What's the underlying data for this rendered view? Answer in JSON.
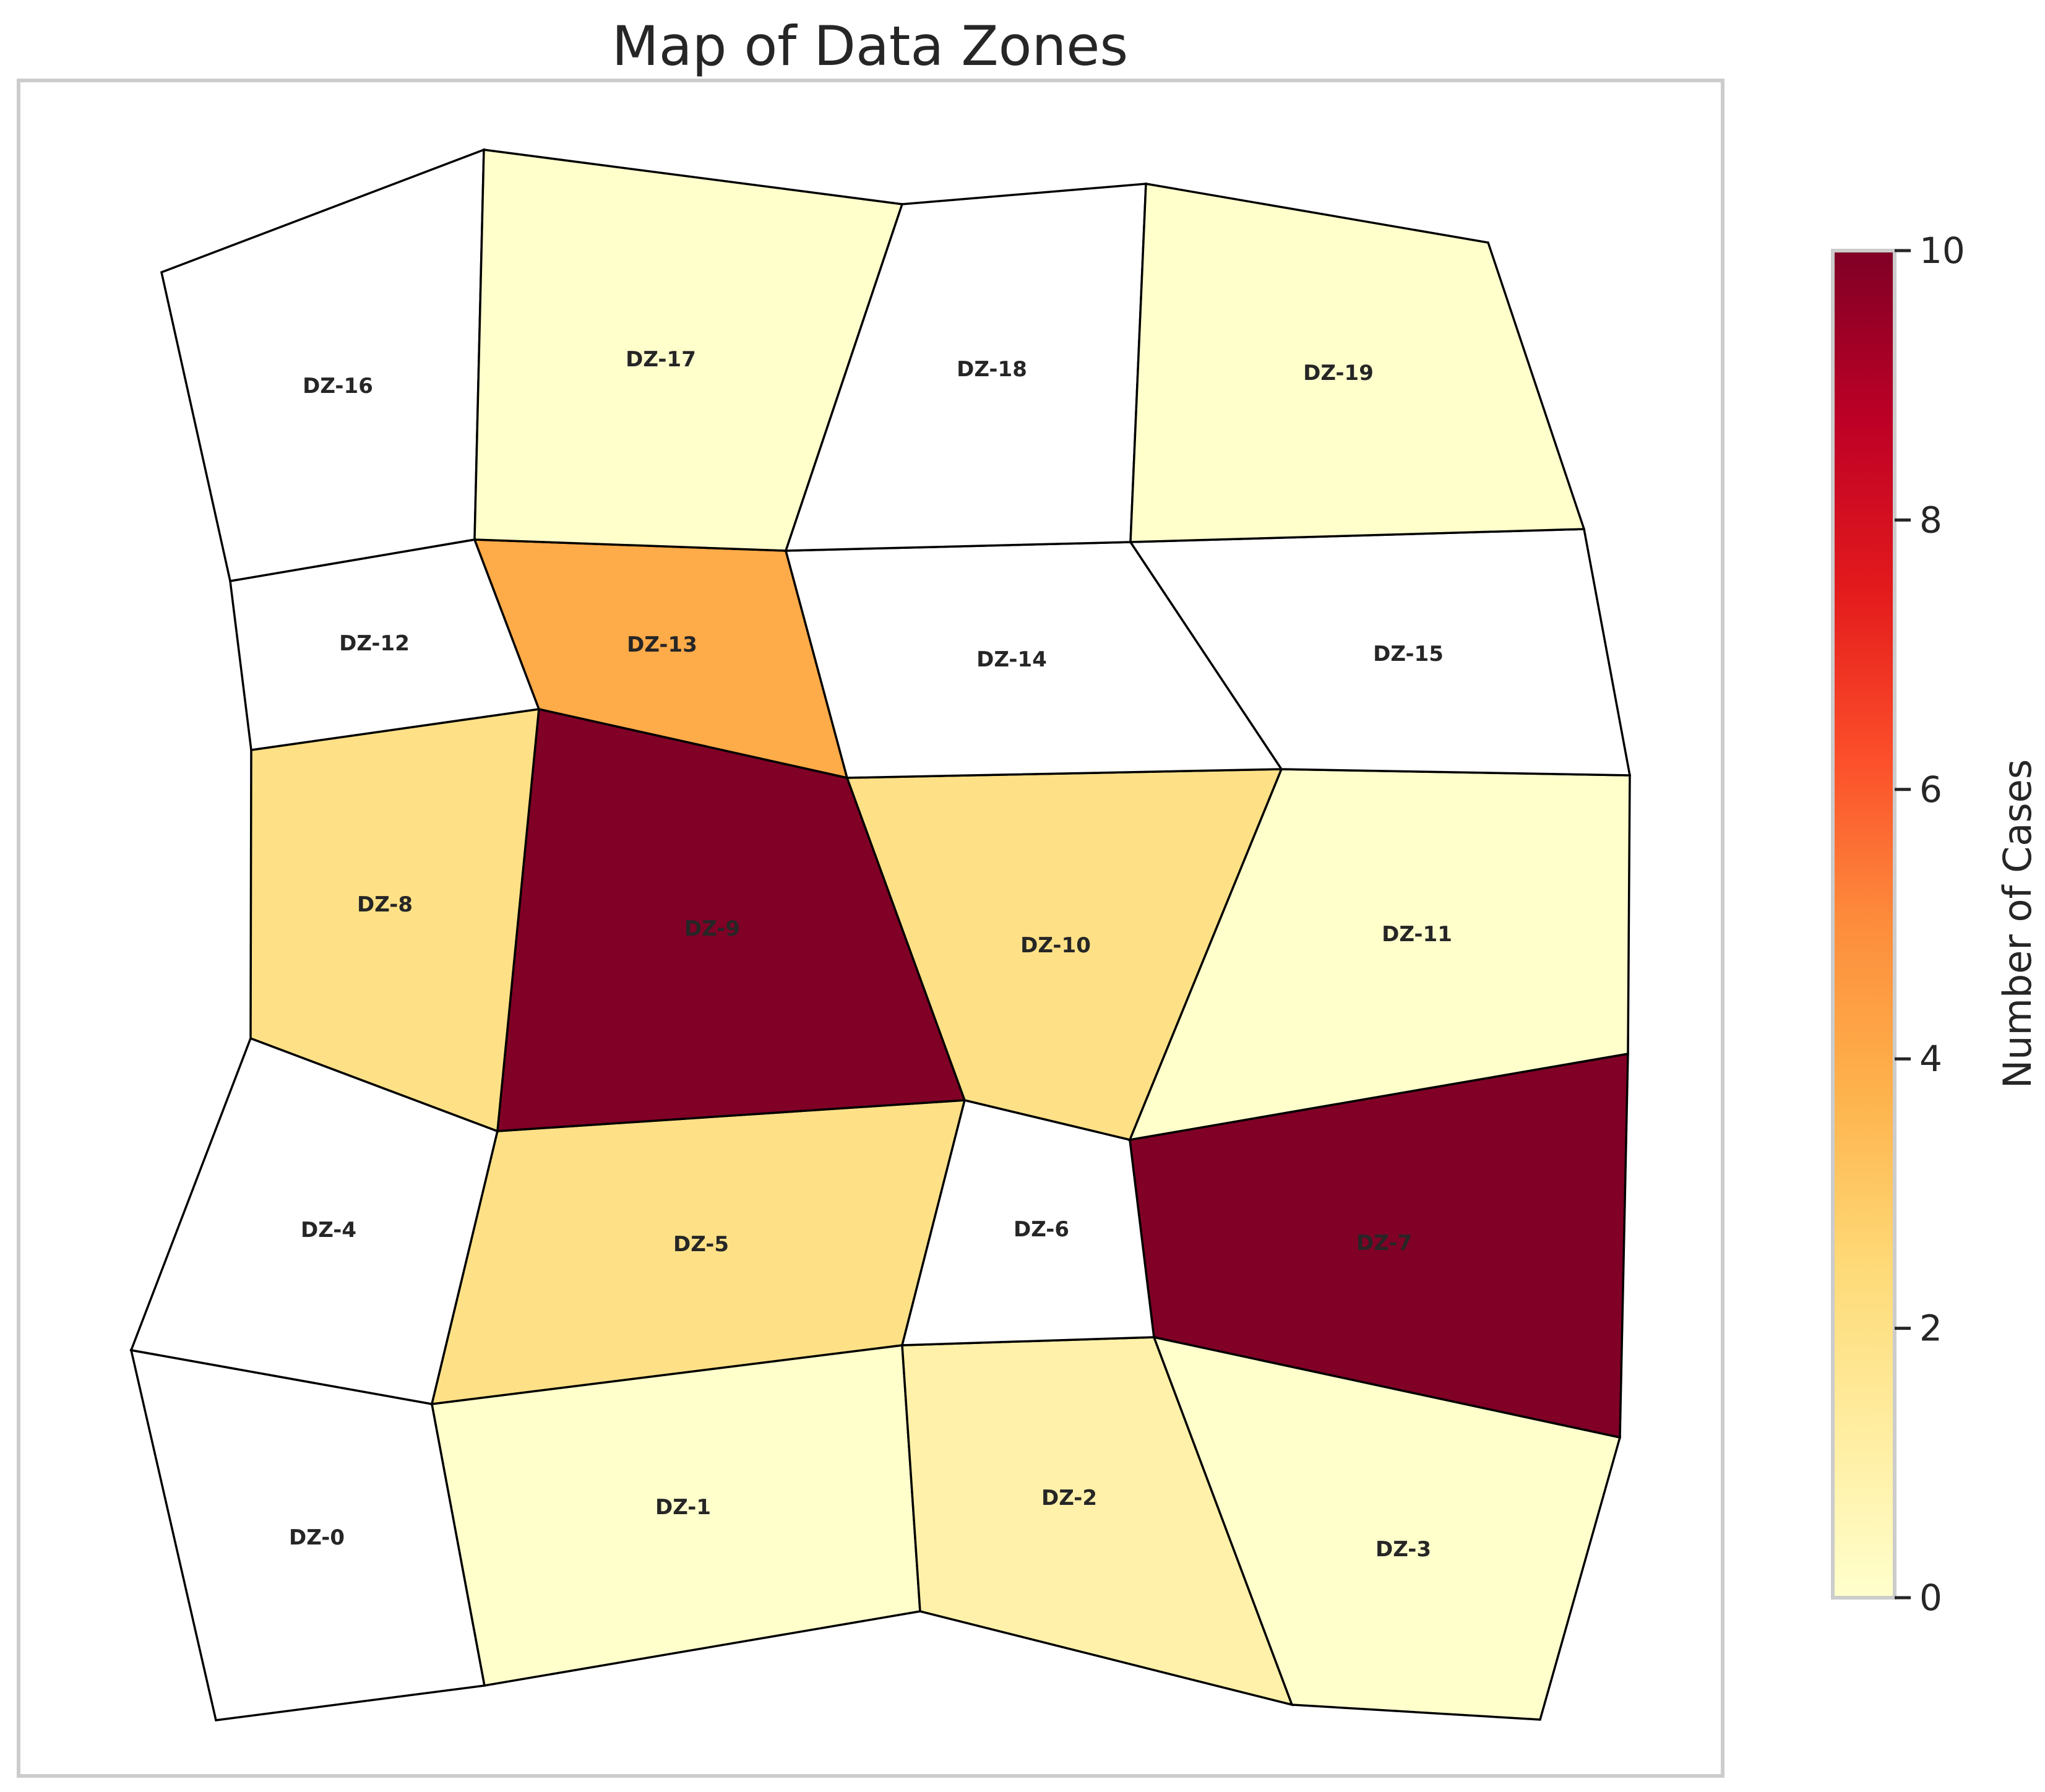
{
  "title": "Map of Data Zones",
  "colorbar": {
    "label": "Number of Cases",
    "min": 0,
    "max": 10,
    "ticks": [
      "0",
      "2",
      "4",
      "6",
      "8",
      "10"
    ],
    "colormap": "YlOrRd",
    "stops": [
      "#ffffcc",
      "#ffeda0",
      "#fed976",
      "#feb24c",
      "#fd8d3c",
      "#fc4e2a",
      "#e31a1c",
      "#bd0026",
      "#800026"
    ]
  },
  "chart_data": {
    "type": "heatmap",
    "title": "Map of Data Zones",
    "colorbar_label": "Number of Cases",
    "value_range": [
      0,
      10
    ],
    "zones": [
      {
        "name": "DZ-0",
        "value": null
      },
      {
        "name": "DZ-1",
        "value": 0
      },
      {
        "name": "DZ-2",
        "value": 1
      },
      {
        "name": "DZ-3",
        "value": 0
      },
      {
        "name": "DZ-4",
        "value": null
      },
      {
        "name": "DZ-5",
        "value": 2
      },
      {
        "name": "DZ-6",
        "value": null
      },
      {
        "name": "DZ-7",
        "value": 10
      },
      {
        "name": "DZ-8",
        "value": 2
      },
      {
        "name": "DZ-9",
        "value": 10
      },
      {
        "name": "DZ-10",
        "value": 2
      },
      {
        "name": "DZ-11",
        "value": 0
      },
      {
        "name": "DZ-12",
        "value": null
      },
      {
        "name": "DZ-13",
        "value": 4
      },
      {
        "name": "DZ-14",
        "value": null
      },
      {
        "name": "DZ-15",
        "value": null
      },
      {
        "name": "DZ-16",
        "value": null
      },
      {
        "name": "DZ-17",
        "value": 0
      },
      {
        "name": "DZ-18",
        "value": null
      },
      {
        "name": "DZ-19",
        "value": 0
      }
    ]
  }
}
